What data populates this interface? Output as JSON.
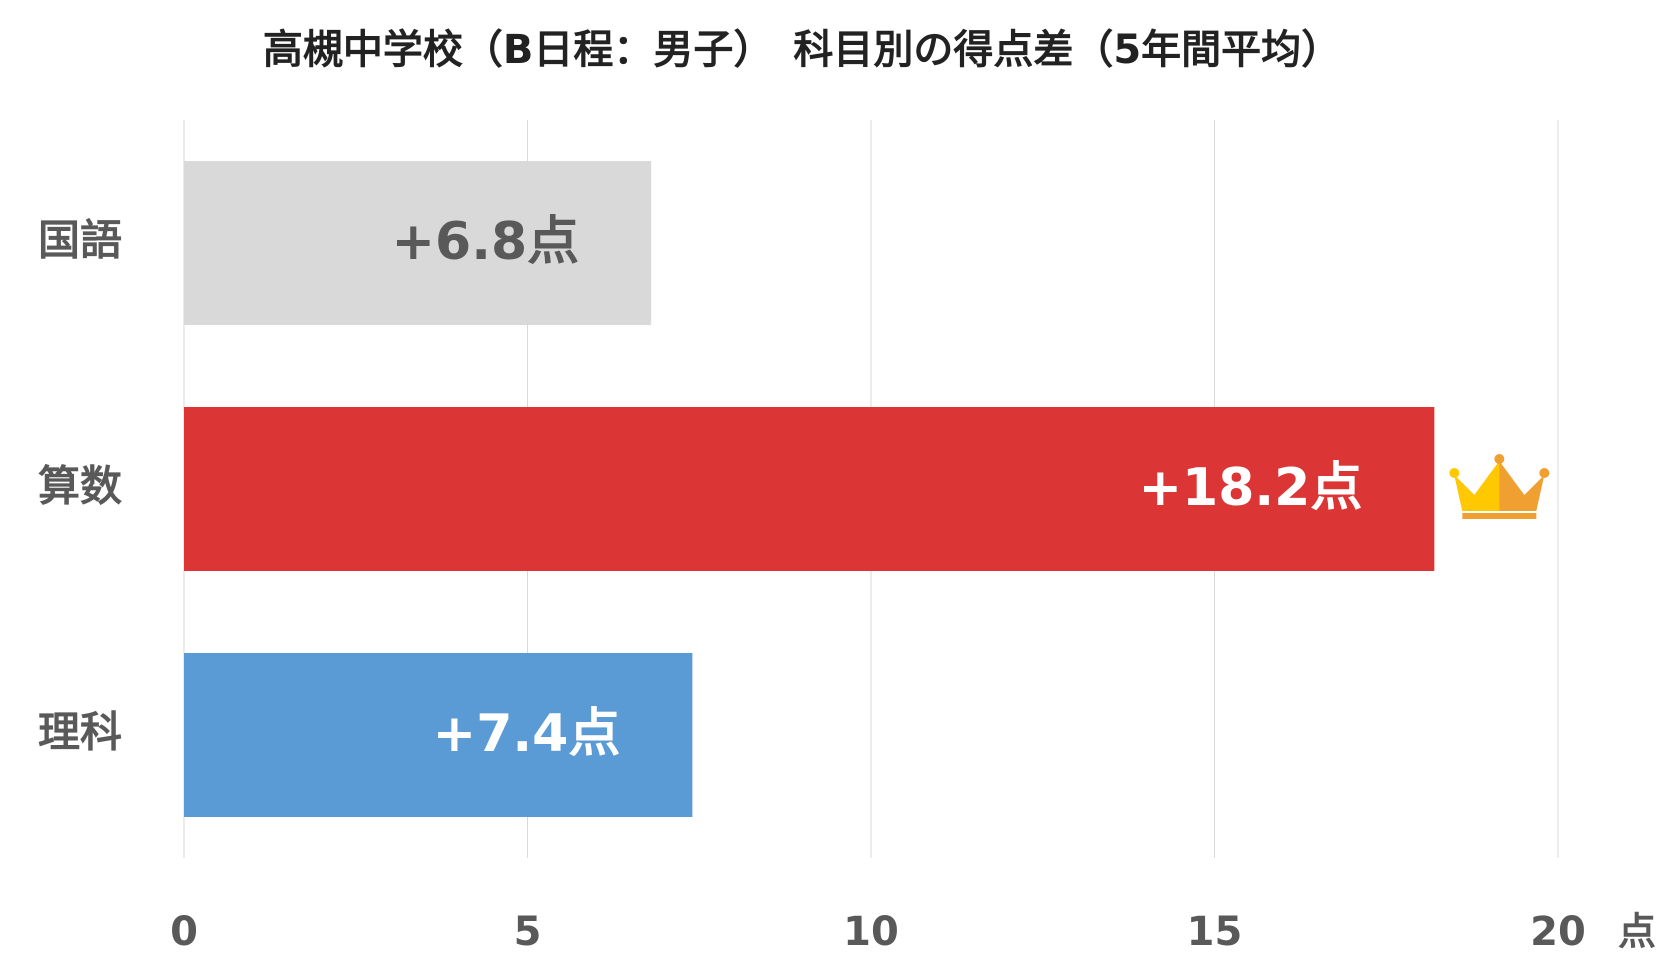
{
  "chart_data": {
    "type": "hbar",
    "title": "高槻中学校（B日程：男子）　科目別の得点差（5年間平均）",
    "categories": [
      "国語",
      "算数",
      "理科"
    ],
    "values": [
      6.8,
      18.2,
      7.4
    ],
    "value_labels": [
      "+6.8点",
      "+18.2点",
      "+7.4点"
    ],
    "colors": [
      "#d9d9d9",
      "#dc3535",
      "#5b9bd5"
    ],
    "x_label": "点",
    "xlim": [
      0,
      20
    ],
    "xticks": [
      0,
      5,
      10,
      15,
      20
    ],
    "grid": true
  }
}
